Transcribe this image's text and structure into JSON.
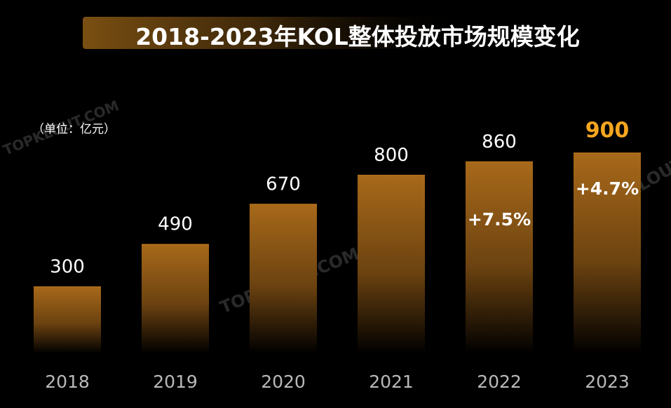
{
  "title": "2018-2023年KOL整体投放市场规模变化",
  "unit_label": "（单位：亿元）",
  "watermark_text": "TOPKLOUT.COM",
  "colors": {
    "background": "#000000",
    "bar_top": "#a8691a",
    "bar_bottom": "#000000",
    "bar_edge": "#c07a20",
    "title_band": "#7a4f12",
    "highlight": "#f6a51f"
  },
  "chart_data": {
    "type": "bar",
    "title": "2018-2023年KOL整体投放市场规模变化",
    "unit": "亿元",
    "categories": [
      "2018",
      "2019",
      "2020",
      "2021",
      "2022",
      "2023"
    ],
    "values": [
      300,
      490,
      670,
      800,
      860,
      900
    ],
    "data_labels": [
      "300",
      "490",
      "670",
      "800",
      "860",
      "900"
    ],
    "highlight_index": 5,
    "annotations": [
      {
        "category": "2022",
        "text": "+7.5%"
      },
      {
        "category": "2023",
        "text": "+4.7%"
      }
    ],
    "ylim": [
      0,
      900
    ],
    "grid": false,
    "legend": "none"
  }
}
